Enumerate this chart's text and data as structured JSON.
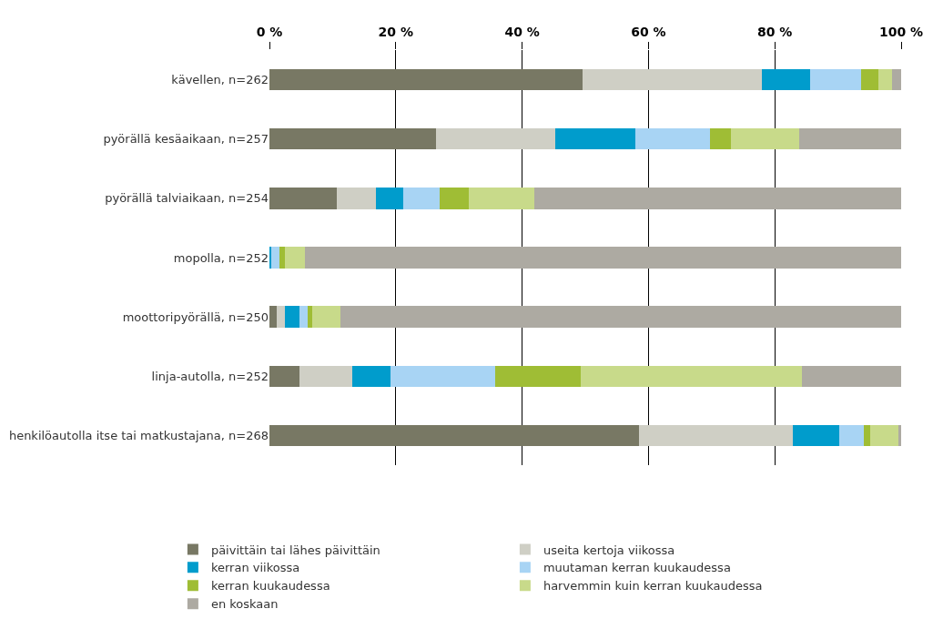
{
  "chart_data": {
    "type": "bar",
    "orientation": "horizontal",
    "stacked": true,
    "categories": [
      "kävellen, n=262",
      "pyörällä kesäaikaan, n=257",
      "pyörällä talviaikaan, n=254",
      "mopolla, n=252",
      "moottoripyörällä, n=250",
      "linja-autolla, n=252",
      "henkilöautolla itse tai matkustajana, n=268"
    ],
    "series": [
      {
        "name": "päivittäin tai lähes päivittäin",
        "color": "#787864",
        "values": [
          49.6,
          26.3,
          10.6,
          0,
          1.2,
          4.8,
          58.5
        ]
      },
      {
        "name": "useita kertoja viikossa",
        "color": "#cfcfc5",
        "values": [
          28.4,
          18.9,
          6.3,
          0,
          1.2,
          8.3,
          24.3
        ]
      },
      {
        "name": "kerran viikossa",
        "color": "#009ccc",
        "values": [
          7.6,
          12.7,
          4.3,
          0.3,
          2.4,
          6.1,
          7.4
        ]
      },
      {
        "name": "muutaman kerran kuukaudessa",
        "color": "#a8d4f4",
        "values": [
          8.0,
          11.8,
          5.7,
          1.3,
          1.2,
          16.6,
          3.9
        ]
      },
      {
        "name": "kerran kuukaudessa",
        "color": "#9fbd35",
        "values": [
          2.8,
          3.3,
          4.6,
          0.8,
          0.8,
          13.5,
          1.0
        ]
      },
      {
        "name": "harvemmin kuin kerran kuukaudessa",
        "color": "#c8da8a",
        "values": [
          2.2,
          10.9,
          10.4,
          3.2,
          4.5,
          35.0,
          4.4
        ]
      },
      {
        "name": "en koskaan",
        "color": "#adaaa2",
        "values": [
          1.4,
          16.1,
          58.1,
          94.4,
          88.7,
          15.7,
          0.5
        ]
      }
    ],
    "xlim": [
      0,
      100
    ],
    "xticks": [
      {
        "value": 0,
        "label": "0 %"
      },
      {
        "value": 20,
        "label": "20 %"
      },
      {
        "value": 40,
        "label": "40 %"
      },
      {
        "value": 60,
        "label": "60 %"
      },
      {
        "value": 80,
        "label": "80 %"
      },
      {
        "value": 100,
        "label": "100 %"
      }
    ],
    "grid": "x",
    "legend": "bottom"
  }
}
